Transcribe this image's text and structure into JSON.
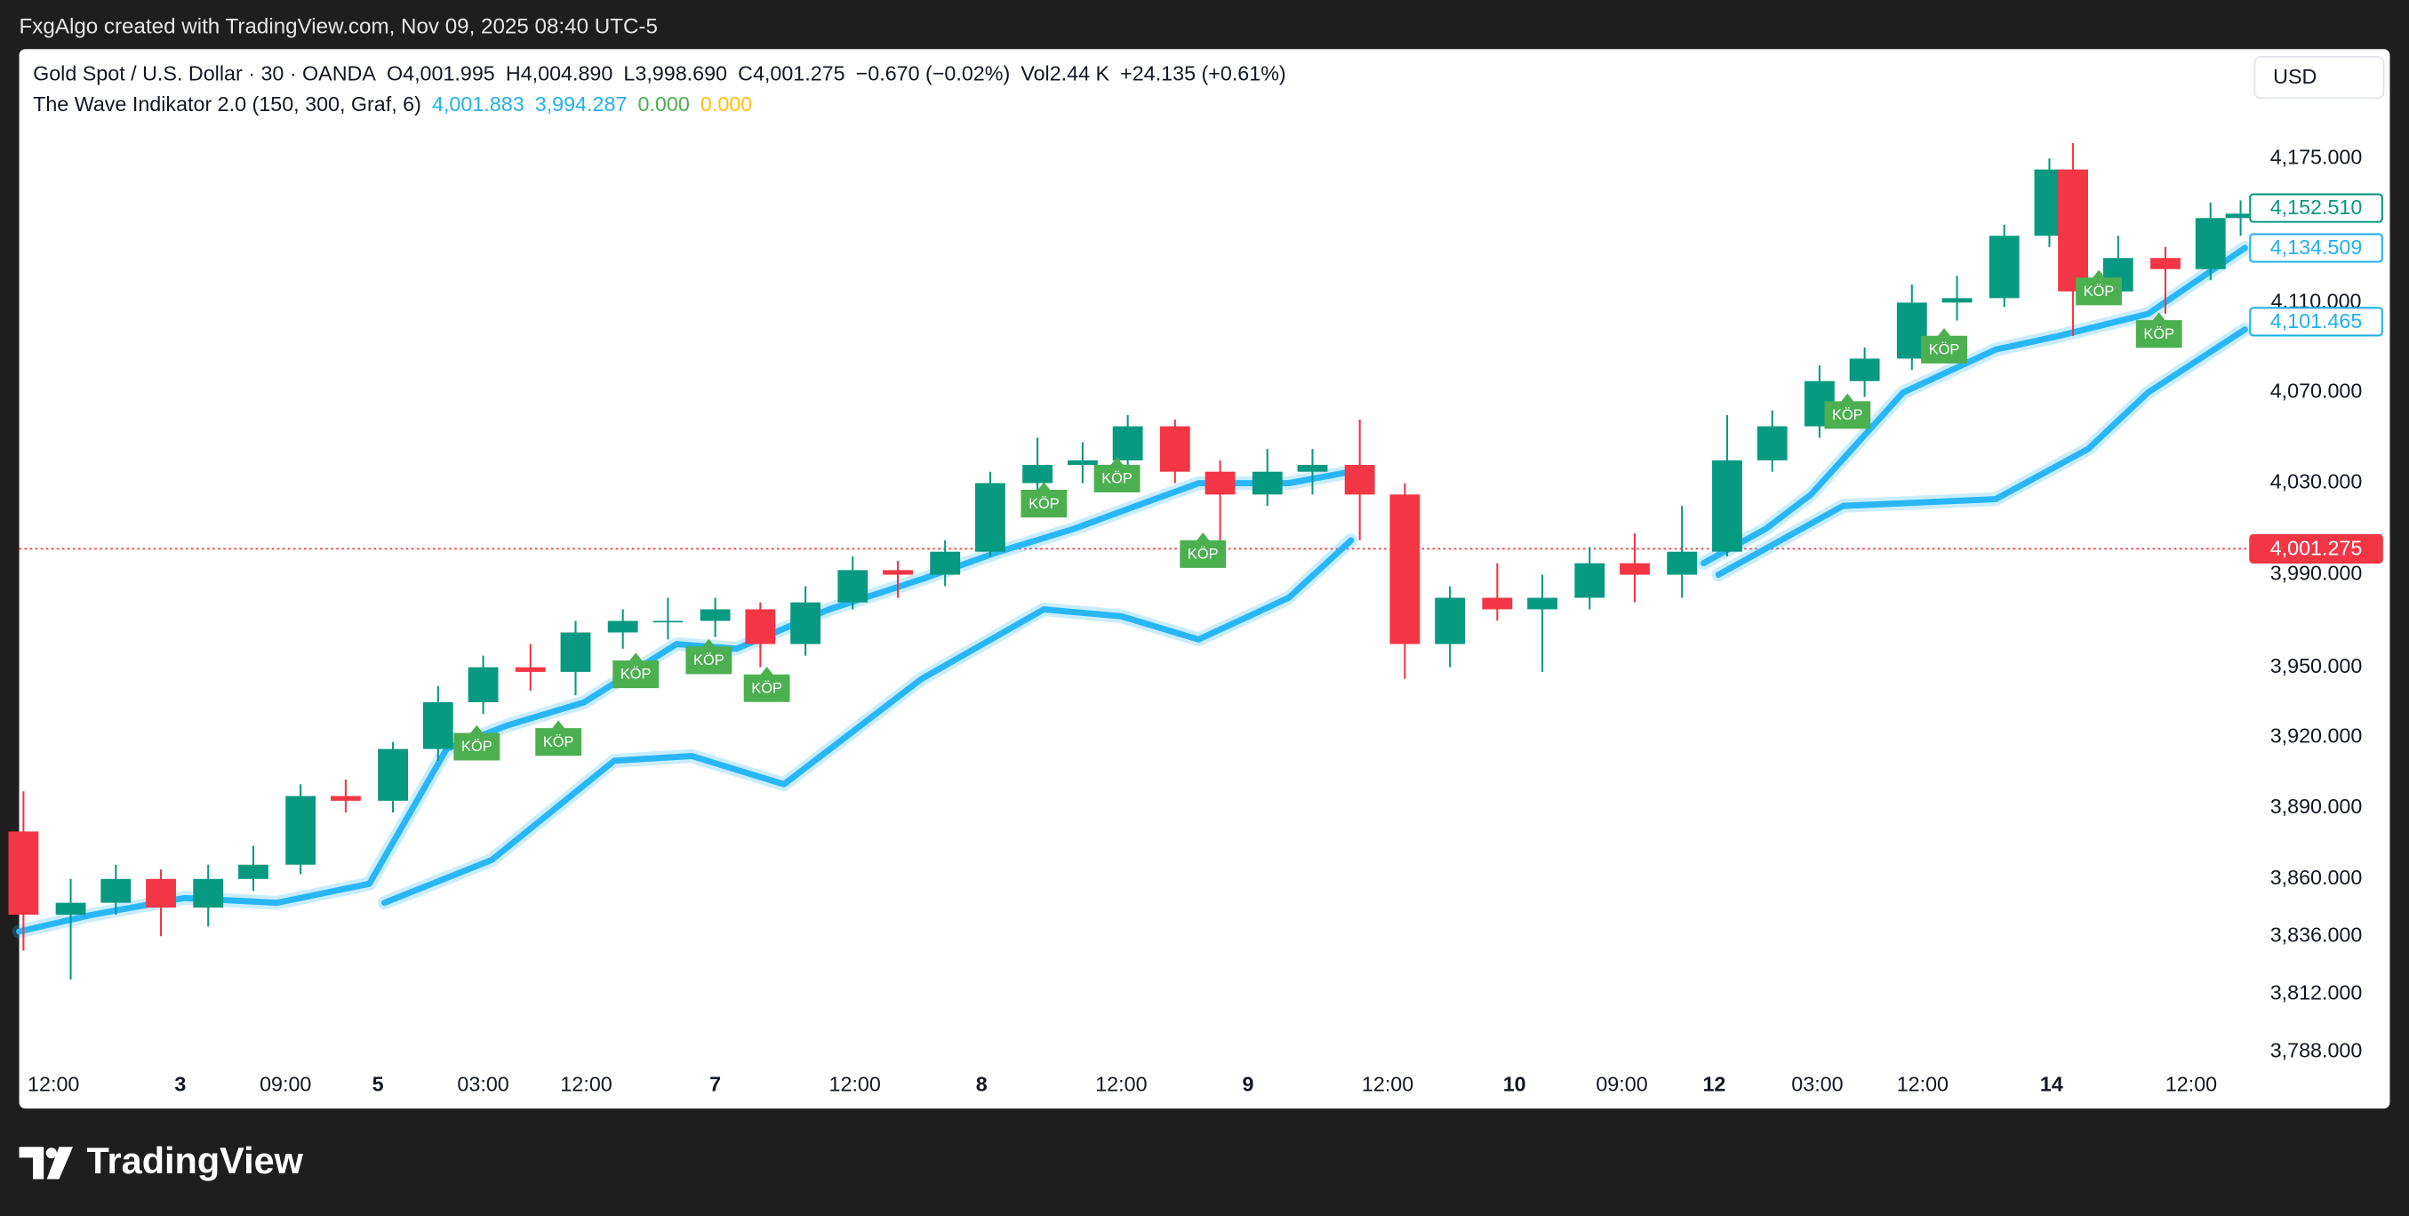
{
  "header": {
    "attribution": "FxgAlgo created with TradingView.com, Nov 09, 2025 08:40 UTC-5"
  },
  "legend": {
    "symbol_line": [
      {
        "text": "Gold Spot / U.S. Dollar · 30 · OANDA"
      },
      {
        "text": "O4,001.995"
      },
      {
        "text": "H4,004.890"
      },
      {
        "text": "L3,998.690"
      },
      {
        "text": "C4,001.275"
      },
      {
        "text": "−0.670 (−0.02%)"
      },
      {
        "text": "Vol2.44 K"
      },
      {
        "text": "+24.135 (+0.61%)"
      }
    ],
    "indicator_line": [
      {
        "text": "The Wave Indikator 2.0 (150, 300, Graf, 6)",
        "color": "#131722"
      },
      {
        "text": "4,001.883",
        "color": "#22b0ee"
      },
      {
        "text": "3,994.287",
        "color": "#22b0ee"
      },
      {
        "text": "0.000",
        "color": "#4caf50"
      },
      {
        "text": "0.000",
        "color": "#ffc107"
      }
    ]
  },
  "currency": "USD",
  "footer": {
    "brand": "TradingView"
  },
  "chart_data": {
    "type": "candlestick",
    "log_scale": true,
    "up_color": "#089981",
    "down_color": "#f23645",
    "x": [
      2,
      24,
      45,
      66,
      88,
      109,
      131,
      152,
      174,
      195,
      216,
      238,
      259,
      281,
      302,
      324,
      345,
      366,
      388,
      409,
      431,
      452,
      474,
      495,
      516,
      538,
      559,
      581,
      602,
      624,
      645,
      666,
      688,
      709,
      731,
      752,
      774,
      795,
      816,
      838,
      859,
      881,
      902,
      924,
      945,
      956,
      977,
      999,
      1020,
      1034
    ],
    "open": [
      3880,
      3845,
      3850,
      3860,
      3848,
      3860,
      3866,
      3895,
      3893,
      3915,
      3935,
      3950,
      3948,
      3965,
      3970,
      3970,
      3975,
      3960,
      3978,
      3992,
      3990,
      4000,
      4030,
      4038,
      4040,
      4055,
      4035,
      4025,
      4035,
      4038,
      4025,
      3960,
      3980,
      3975,
      3980,
      3995,
      3990,
      4000,
      4040,
      4055,
      4075,
      4085,
      4110,
      4112,
      4140,
      4170,
      4115,
      4130,
      4125,
      4148
    ],
    "high": [
      3897,
      3860,
      3866,
      3864,
      3866,
      3874,
      3900,
      3902,
      3918,
      3942,
      3955,
      3960,
      3970,
      3975,
      3980,
      3980,
      3978,
      3985,
      3998,
      3996,
      4005,
      4035,
      4050,
      4048,
      4060,
      4058,
      4040,
      4045,
      4045,
      4058,
      4030,
      3985,
      3995,
      3990,
      4002,
      4008,
      4020,
      4060,
      4062,
      4082,
      4090,
      4118,
      4122,
      4145,
      4175,
      4182,
      4140,
      4135,
      4155,
      4156
    ],
    "low": [
      3830,
      3818,
      3845,
      3836,
      3840,
      3855,
      3862,
      3888,
      3888,
      3910,
      3930,
      3940,
      3938,
      3958,
      3962,
      3963,
      3950,
      3955,
      3975,
      3980,
      3985,
      3998,
      4025,
      4030,
      4035,
      4030,
      4005,
      4020,
      4025,
      4005,
      3945,
      3950,
      3970,
      3948,
      3975,
      3978,
      3980,
      3998,
      4035,
      4050,
      4068,
      4080,
      4102,
      4108,
      4135,
      4095,
      4110,
      4105,
      4120,
      4140
    ],
    "close": [
      3845,
      3850,
      3860,
      3848,
      3860,
      3866,
      3895,
      3893,
      3915,
      3935,
      3950,
      3948,
      3965,
      3970,
      3970,
      3975,
      3960,
      3978,
      3992,
      3990,
      4000,
      4030,
      4038,
      4040,
      4055,
      4035,
      4025,
      4035,
      4038,
      4025,
      3960,
      3980,
      3975,
      3980,
      3995,
      3990,
      4000,
      4040,
      4055,
      4075,
      4085,
      4110,
      4112,
      4140,
      4170,
      4115,
      4130,
      4125,
      4148,
      4150
    ],
    "series": [
      {
        "color": "#29b6f6",
        "x": [
          0,
          34,
          77,
          120,
          163,
          199,
          227,
          263,
          306,
          334,
          377,
          420,
          456,
          491,
          520,
          549,
          591,
          620,
          700,
          784,
          813,
          834,
          877,
          920,
          949,
          991,
          1036
        ],
        "values": [
          3838,
          3845,
          3852,
          3850,
          3858,
          3915,
          3925,
          3935,
          3960,
          3958,
          3975,
          3988,
          4000,
          4010,
          4020,
          4030,
          4030,
          4035,
          null,
          3995,
          4010,
          4025,
          4070,
          4089,
          4095,
          4105,
          4134.5
        ]
      },
      {
        "color": "#29b6f6",
        "x": [
          170,
          220,
          277,
          313,
          356,
          420,
          477,
          513,
          549,
          591,
          620,
          700,
          791,
          849,
          920,
          963,
          991,
          1036
        ],
        "values": [
          3850,
          3868,
          3910,
          3912,
          3900,
          3945,
          3975,
          3972,
          3962,
          3980,
          4005,
          null,
          3990,
          4020,
          4023,
          4045,
          4070,
          4098
        ]
      }
    ],
    "signals": [
      {
        "x": 213,
        "y": 3916,
        "label": "KÖP"
      },
      {
        "x": 251,
        "y": 3918,
        "label": "KÖP"
      },
      {
        "x": 287,
        "y": 3947,
        "label": "KÖP"
      },
      {
        "x": 321,
        "y": 3953,
        "label": "KÖP"
      },
      {
        "x": 348,
        "y": 3941,
        "label": "KÖP"
      },
      {
        "x": 477,
        "y": 4021,
        "label": "KÖP"
      },
      {
        "x": 511,
        "y": 4032,
        "label": "KÖP"
      },
      {
        "x": 551,
        "y": 3999,
        "label": "KÖP"
      },
      {
        "x": 851,
        "y": 4060,
        "label": "KÖP"
      },
      {
        "x": 896,
        "y": 4089,
        "label": "KÖP"
      },
      {
        "x": 968,
        "y": 4115,
        "label": "KÖP"
      },
      {
        "x": 996,
        "y": 4096,
        "label": "KÖP"
      }
    ],
    "signal_color": "#4caf50",
    "price_labels": [
      {
        "value": 4152.51,
        "label": "4,152.510",
        "color": "#089981",
        "filled": false
      },
      {
        "value": 4134.509,
        "label": "4,134.509",
        "color": "#22b0ee",
        "filled": false
      },
      {
        "value": 4101.465,
        "label": "4,101.465",
        "color": "#22b0ee",
        "filled": false
      },
      {
        "value": 4001.275,
        "label": "4,001.275",
        "color": "#f23645",
        "filled": true
      }
    ],
    "xlim": [
      0,
      1037
    ],
    "ylim": [
      3783,
      4225
    ],
    "xticks": [
      {
        "value": 16,
        "label": "12:00"
      },
      {
        "value": 75,
        "label": "3"
      },
      {
        "value": 124,
        "label": "09:00"
      },
      {
        "value": 167,
        "label": "5"
      },
      {
        "value": 216,
        "label": "03:00"
      },
      {
        "value": 264,
        "label": "12:00"
      },
      {
        "value": 324,
        "label": "7"
      },
      {
        "value": 389,
        "label": "12:00"
      },
      {
        "value": 448,
        "label": "8"
      },
      {
        "value": 513,
        "label": "12:00"
      },
      {
        "value": 572,
        "label": "9"
      },
      {
        "value": 637,
        "label": "12:00"
      },
      {
        "value": 696,
        "label": "10"
      },
      {
        "value": 746,
        "label": "09:00"
      },
      {
        "value": 789,
        "label": "12"
      },
      {
        "value": 837,
        "label": "03:00"
      },
      {
        "value": 886,
        "label": "12:00"
      },
      {
        "value": 946,
        "label": "14"
      },
      {
        "value": 1011,
        "label": "12:00"
      }
    ],
    "yticks": [
      {
        "value": 4175,
        "label": "4,175.000"
      },
      {
        "value": 4110,
        "label": "4,110.000"
      },
      {
        "value": 4070,
        "label": "4,070.000"
      },
      {
        "value": 4030,
        "label": "4,030.000"
      },
      {
        "value": 3990,
        "label": "3,990.000"
      },
      {
        "value": 3950,
        "label": "3,950.000"
      },
      {
        "value": 3920,
        "label": "3,920.000"
      },
      {
        "value": 3890,
        "label": "3,890.000"
      },
      {
        "value": 3860,
        "label": "3,860.000"
      },
      {
        "value": 3836,
        "label": "3,836.000"
      },
      {
        "value": 3812,
        "label": "3,812.000"
      },
      {
        "value": 3788,
        "label": "3,788.000"
      }
    ]
  }
}
